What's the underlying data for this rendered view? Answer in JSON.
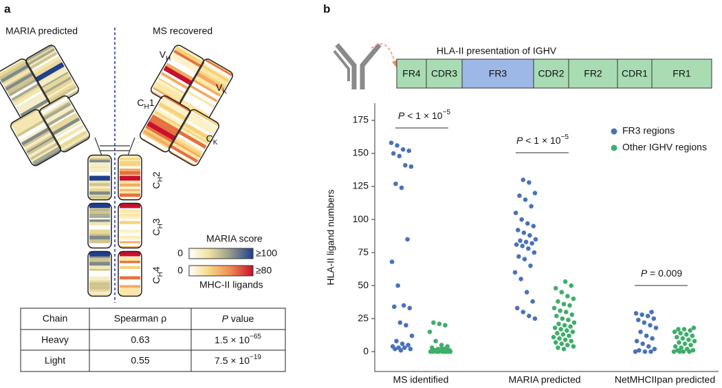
{
  "panel_a": {
    "label": "a",
    "left_title": "MARIA predicted",
    "right_title": "MS recovered",
    "domains": [
      {
        "base": "V",
        "sub": "H"
      },
      {
        "base": "C",
        "sub": "H",
        "suffix": "1"
      },
      {
        "base": "V",
        "sub": "K"
      },
      {
        "base": "C",
        "sub": "K"
      },
      {
        "base": "C",
        "sub": "H",
        "suffix": "2"
      },
      {
        "base": "C",
        "sub": "H",
        "suffix": "3"
      },
      {
        "base": "C",
        "sub": "H",
        "suffix": "4"
      }
    ],
    "legend": {
      "title": "MARIA score",
      "min1": 0,
      "max1": "≥100",
      "min2": 0,
      "max2": "≥80",
      "subtitle": "MHC-II ligands"
    },
    "table": {
      "header": [
        "Chain",
        "Spearman ρ",
        {
          "italic": "P",
          "text": " value"
        }
      ],
      "rows": [
        [
          "Heavy",
          0.63,
          {
            "mantissa": "1.5 × 10",
            "exponent": "−65"
          }
        ],
        [
          "Light",
          0.55,
          {
            "mantissa": "7.5 × 10",
            "exponent": "−19"
          }
        ]
      ]
    }
  },
  "panel_b": {
    "label": "b",
    "ighv_title": "HLA-II presentation of IGHV",
    "segments": [
      "FR4",
      "CDR3",
      "FR3",
      "CDR2",
      "FR2",
      "CDR1",
      "FR1"
    ]
  },
  "chart_data": {
    "type": "strip",
    "y_label": "HLA-II ligand numbers",
    "categories": [
      "MS identified",
      "MARIA predicted",
      "NetMHCIIpan predicted"
    ],
    "ylim": [
      -15,
      188
    ],
    "yticks": [
      0,
      25,
      50,
      75,
      100,
      125,
      150,
      175
    ],
    "legend": "upper right",
    "annotations": [
      {
        "italic": "P",
        "text": " < 1 × 10",
        "sup": "−5"
      },
      {
        "italic": "P",
        "text": " < 1 × 10",
        "sup": "−5"
      },
      {
        "italic": "P",
        "text": " = 0.009"
      }
    ],
    "series": [
      {
        "name": "FR3 regions",
        "color": "#4a72b8",
        "values": [
          [
            158,
            156,
            153,
            152,
            150,
            148,
            141,
            140,
            127,
            124,
            85,
            68,
            50,
            35,
            33,
            34,
            22,
            20,
            12,
            8,
            6,
            5,
            4,
            3,
            3,
            2,
            2,
            1
          ],
          [
            130,
            128,
            120,
            118,
            115,
            110,
            105,
            100,
            97,
            95,
            92,
            90,
            88,
            85,
            84,
            83,
            82,
            81,
            80,
            78,
            75,
            72,
            70,
            65,
            60,
            55,
            45,
            38,
            33,
            30,
            27,
            25
          ],
          [
            30,
            29,
            28,
            27,
            25,
            24,
            22,
            20,
            18,
            15,
            12,
            10,
            8,
            6,
            4,
            2,
            1,
            0,
            0,
            0
          ]
        ]
      },
      {
        "name": "Other IGHV regions",
        "color": "#3fae6a",
        "values": [
          [
            22,
            21,
            20,
            15,
            8,
            5,
            4,
            3,
            2,
            2,
            1,
            1,
            1,
            0,
            0,
            0,
            0,
            0,
            0,
            0,
            0,
            0,
            1,
            2,
            3
          ],
          [
            53,
            50,
            48,
            45,
            42,
            40,
            38,
            36,
            35,
            33,
            31,
            30,
            28,
            27,
            25,
            24,
            22,
            21,
            20,
            19,
            18,
            17,
            16,
            15,
            14,
            13,
            12,
            11,
            10,
            9,
            8,
            7,
            6,
            5,
            4,
            3,
            2
          ],
          [
            18,
            17,
            17,
            16,
            15,
            14,
            13,
            12,
            11,
            10,
            9,
            8,
            7,
            6,
            5,
            4,
            3,
            2,
            1,
            1,
            0,
            0,
            0,
            0
          ]
        ]
      }
    ]
  }
}
